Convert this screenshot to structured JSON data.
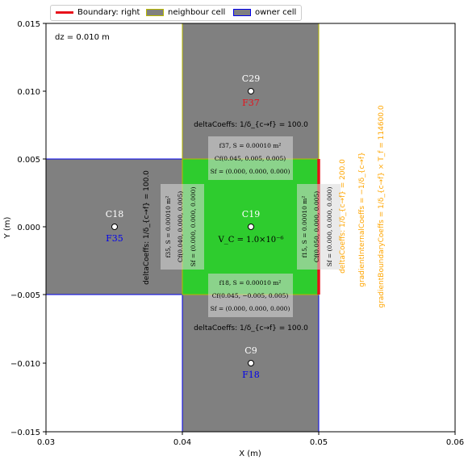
{
  "legend": {
    "boundary": "Boundary: right",
    "neighbour": "neighbour cell",
    "owner": "owner cell"
  },
  "axes": {
    "xlabel": "X (m)",
    "ylabel": "Y (m)",
    "xlim": [
      0.03,
      0.06
    ],
    "ylim": [
      -0.015,
      0.015
    ],
    "xticks": [
      "0.03",
      "0.04",
      "0.05",
      "0.06"
    ],
    "yticks": [
      "0.015",
      "0.010",
      "0.005",
      "0.000",
      "−0.005",
      "−0.010",
      "−0.015"
    ]
  },
  "annotations": {
    "dz": "dz = 0.010 m",
    "owner_label": "C19",
    "owner_volume": "V_C = 1.0×10⁻⁶",
    "top": {
      "cell": "C29",
      "face": "F37",
      "delta": "deltaCoeffs: 1/δ_{c→f} = 100.0",
      "line1": "f37, S = 0.00010 m²",
      "line2": "Cf(0.045, 0.005, 0.005)",
      "line3": "Sf = (0.000, 0.000, 0.000)"
    },
    "bottom": {
      "cell": "C9",
      "face": "F18",
      "delta": "deltaCoeffs: 1/δ_{c→f} = 100.0",
      "line1": "f18, S = 0.00010 m²",
      "line2": "Cf(0.045, −0.005, 0.005)",
      "line3": "Sf = (0.000, 0.000, 0.000)"
    },
    "left": {
      "cell": "C18",
      "face": "F35",
      "delta": "deltaCoeffs: 1/δ_{c→f} = 100.0",
      "line1": "f35, S = 0.00010 m²",
      "line2": "Cf(0.040, 0.000, 0.005)",
      "line3": "Sf = (0.000, 0.000, 0.000)"
    },
    "right": {
      "line1": "f15, S = 0.00010 m²",
      "line2": "Cf(0.050, 0.000, 0.005)",
      "line3": "Sf = (0.000, 0.000, 0.000)",
      "delta": "deltaCoeffs: 1/δ_{c→f} = 200.0",
      "grad_internal": "gradientInternalCoeffs = −1/δ_{c→f}",
      "grad_boundary": "gradientBoundaryCoeffs = 1/δ_{c→f} × T_f = 114600.0"
    }
  },
  "colors": {
    "owner_fill": "#2ecc2e",
    "neighbour_fill": "#808080",
    "boundary": "#e8111a",
    "owner_edge": "#0000ee",
    "neighbour_edge": "#b8b800",
    "face_label_blue": "#0000ee",
    "face_label_red": "#e8111a",
    "orange": "#ffa500"
  }
}
